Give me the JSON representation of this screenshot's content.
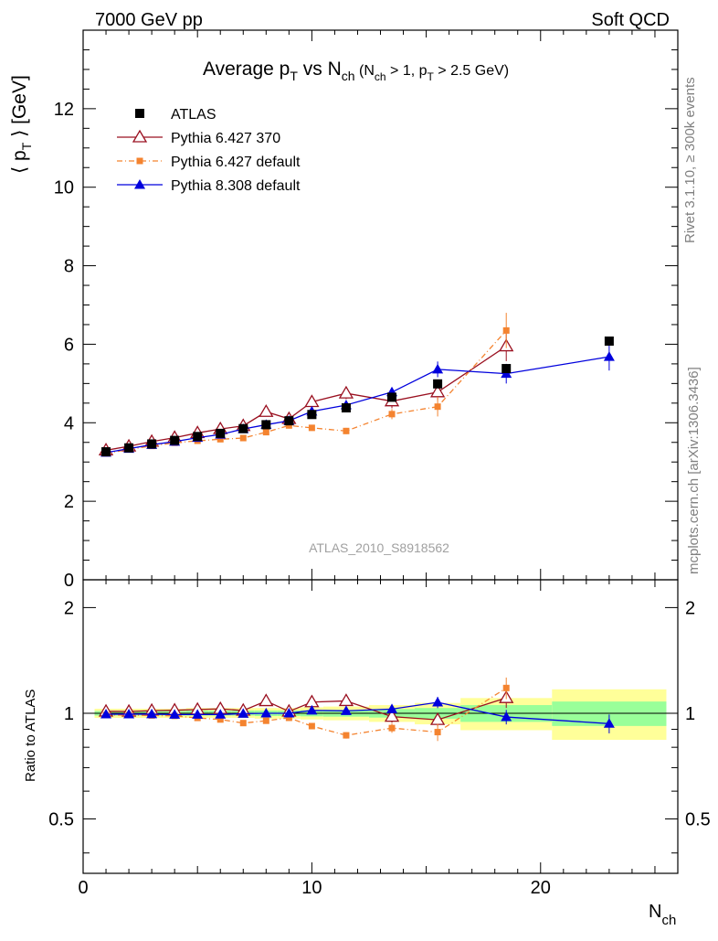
{
  "header": {
    "left": "7000 GeV pp",
    "right": "Soft QCD"
  },
  "side": {
    "rivet": "Rivet 3.1.10, ≥ 300k events",
    "mcplots": "mcplots.cern.ch [arXiv:1306.3436]"
  },
  "watermark": "ATLAS_2010_S8918562",
  "colors": {
    "atlas": "#000000",
    "p6_370": "#9a1020",
    "p6_default": "#f4832f",
    "p8": "#0000dd",
    "band_yellow": "#ffff99",
    "band_green": "#99ff99"
  },
  "chart_data": {
    "type": "line",
    "title": {
      "main": "Average p",
      "main_sub": "T",
      "mid": " vs N",
      "mid_sub": "ch",
      "cond1": " (N",
      "cond1_sub": "ch",
      "cond2": " > 1, p",
      "cond2_sub": "T",
      "cond3": " > 2.5 GeV)"
    },
    "ylabel": {
      "open": "⟨ p",
      "sub": "T",
      "close": " ⟩  [GeV]"
    },
    "xlabel": {
      "main": "N",
      "sub": "ch"
    },
    "ratio_ylabel": "Ratio to ATLAS",
    "xlim": [
      0,
      26
    ],
    "ylim": [
      0,
      14
    ],
    "ratio_ylim": [
      0.35,
      2.4
    ],
    "ratio_scale": "log",
    "x_ticks": [
      "0",
      "10",
      "20"
    ],
    "y_ticks": [
      "0",
      "2",
      "4",
      "6",
      "8",
      "10",
      "12"
    ],
    "ratio_ticks": [
      "0.5",
      "1",
      "2"
    ],
    "legend_position": "top-left",
    "x": [
      1,
      2,
      3,
      4,
      5,
      6,
      7,
      8,
      9,
      10,
      11.5,
      13.5,
      15.5,
      18.5,
      23
    ],
    "series": [
      {
        "name": "ATLAS",
        "marker": "filled-square",
        "values": [
          3.26,
          3.36,
          3.46,
          3.55,
          3.65,
          3.73,
          3.85,
          3.95,
          4.05,
          4.21,
          4.38,
          4.65,
          4.99,
          5.38,
          6.08
        ]
      },
      {
        "name": "Pythia 6.427 370",
        "marker": "open-triangle",
        "values": [
          3.3,
          3.4,
          3.52,
          3.62,
          3.74,
          3.84,
          3.92,
          4.28,
          4.1,
          4.53,
          4.75,
          4.55,
          4.78,
          5.95,
          null
        ],
        "errors": [
          0.03,
          0.03,
          0.03,
          0.03,
          0.04,
          0.04,
          0.05,
          0.08,
          0.08,
          0.12,
          0.15,
          0.18,
          0.2,
          0.38,
          0
        ]
      },
      {
        "name": "Pythia 6.427 default",
        "marker": "filled-square-small",
        "dash": "dash-dot",
        "values": [
          3.22,
          3.32,
          3.41,
          3.49,
          3.54,
          3.58,
          3.61,
          3.76,
          3.93,
          3.87,
          3.79,
          4.22,
          4.41,
          6.35,
          null
        ],
        "errors": [
          0.03,
          0.03,
          0.03,
          0.03,
          0.04,
          0.04,
          0.05,
          0.05,
          0.06,
          0.07,
          0.08,
          0.13,
          0.25,
          0.45,
          0
        ]
      },
      {
        "name": "Pythia 8.308 default",
        "marker": "filled-triangle",
        "values": [
          3.24,
          3.34,
          3.44,
          3.52,
          3.62,
          3.7,
          3.84,
          3.95,
          4.05,
          4.29,
          4.45,
          4.78,
          5.36,
          5.25,
          5.68
        ],
        "errors": [
          0.03,
          0.03,
          0.03,
          0.03,
          0.04,
          0.04,
          0.05,
          0.05,
          0.06,
          0.08,
          0.1,
          0.12,
          0.2,
          0.25,
          0.35
        ]
      }
    ],
    "ratio_bands": [
      {
        "x0": 0.5,
        "x1": 1.5,
        "yellow": [
          0.97,
          1.03
        ],
        "green": [
          0.985,
          1.015
        ]
      },
      {
        "x0": 1.5,
        "x1": 2.5,
        "yellow": [
          0.97,
          1.03
        ],
        "green": [
          0.985,
          1.015
        ]
      },
      {
        "x0": 2.5,
        "x1": 3.5,
        "yellow": [
          0.97,
          1.03
        ],
        "green": [
          0.985,
          1.015
        ]
      },
      {
        "x0": 3.5,
        "x1": 4.5,
        "yellow": [
          0.97,
          1.03
        ],
        "green": [
          0.985,
          1.015
        ]
      },
      {
        "x0": 4.5,
        "x1": 5.5,
        "yellow": [
          0.97,
          1.035
        ],
        "green": [
          0.985,
          1.018
        ]
      },
      {
        "x0": 5.5,
        "x1": 6.5,
        "yellow": [
          0.97,
          1.035
        ],
        "green": [
          0.985,
          1.018
        ]
      },
      {
        "x0": 6.5,
        "x1": 7.5,
        "yellow": [
          0.97,
          1.035
        ],
        "green": [
          0.985,
          1.018
        ]
      },
      {
        "x0": 7.5,
        "x1": 8.5,
        "yellow": [
          0.965,
          1.035
        ],
        "green": [
          0.982,
          1.018
        ]
      },
      {
        "x0": 8.5,
        "x1": 9.5,
        "yellow": [
          0.965,
          1.035
        ],
        "green": [
          0.982,
          1.018
        ]
      },
      {
        "x0": 9.5,
        "x1": 10.5,
        "yellow": [
          0.96,
          1.04
        ],
        "green": [
          0.98,
          1.02
        ]
      },
      {
        "x0": 10.5,
        "x1": 12.5,
        "yellow": [
          0.955,
          1.045
        ],
        "green": [
          0.978,
          1.022
        ]
      },
      {
        "x0": 12.5,
        "x1": 14.5,
        "yellow": [
          0.945,
          1.055
        ],
        "green": [
          0.972,
          1.028
        ]
      },
      {
        "x0": 14.5,
        "x1": 16.5,
        "yellow": [
          0.93,
          1.07
        ],
        "green": [
          0.965,
          1.035
        ]
      },
      {
        "x0": 16.5,
        "x1": 20.5,
        "yellow": [
          0.895,
          1.105
        ],
        "green": [
          0.945,
          1.055
        ]
      },
      {
        "x0": 20.5,
        "x1": 25.5,
        "yellow": [
          0.84,
          1.17
        ],
        "green": [
          0.92,
          1.08
        ]
      }
    ]
  }
}
